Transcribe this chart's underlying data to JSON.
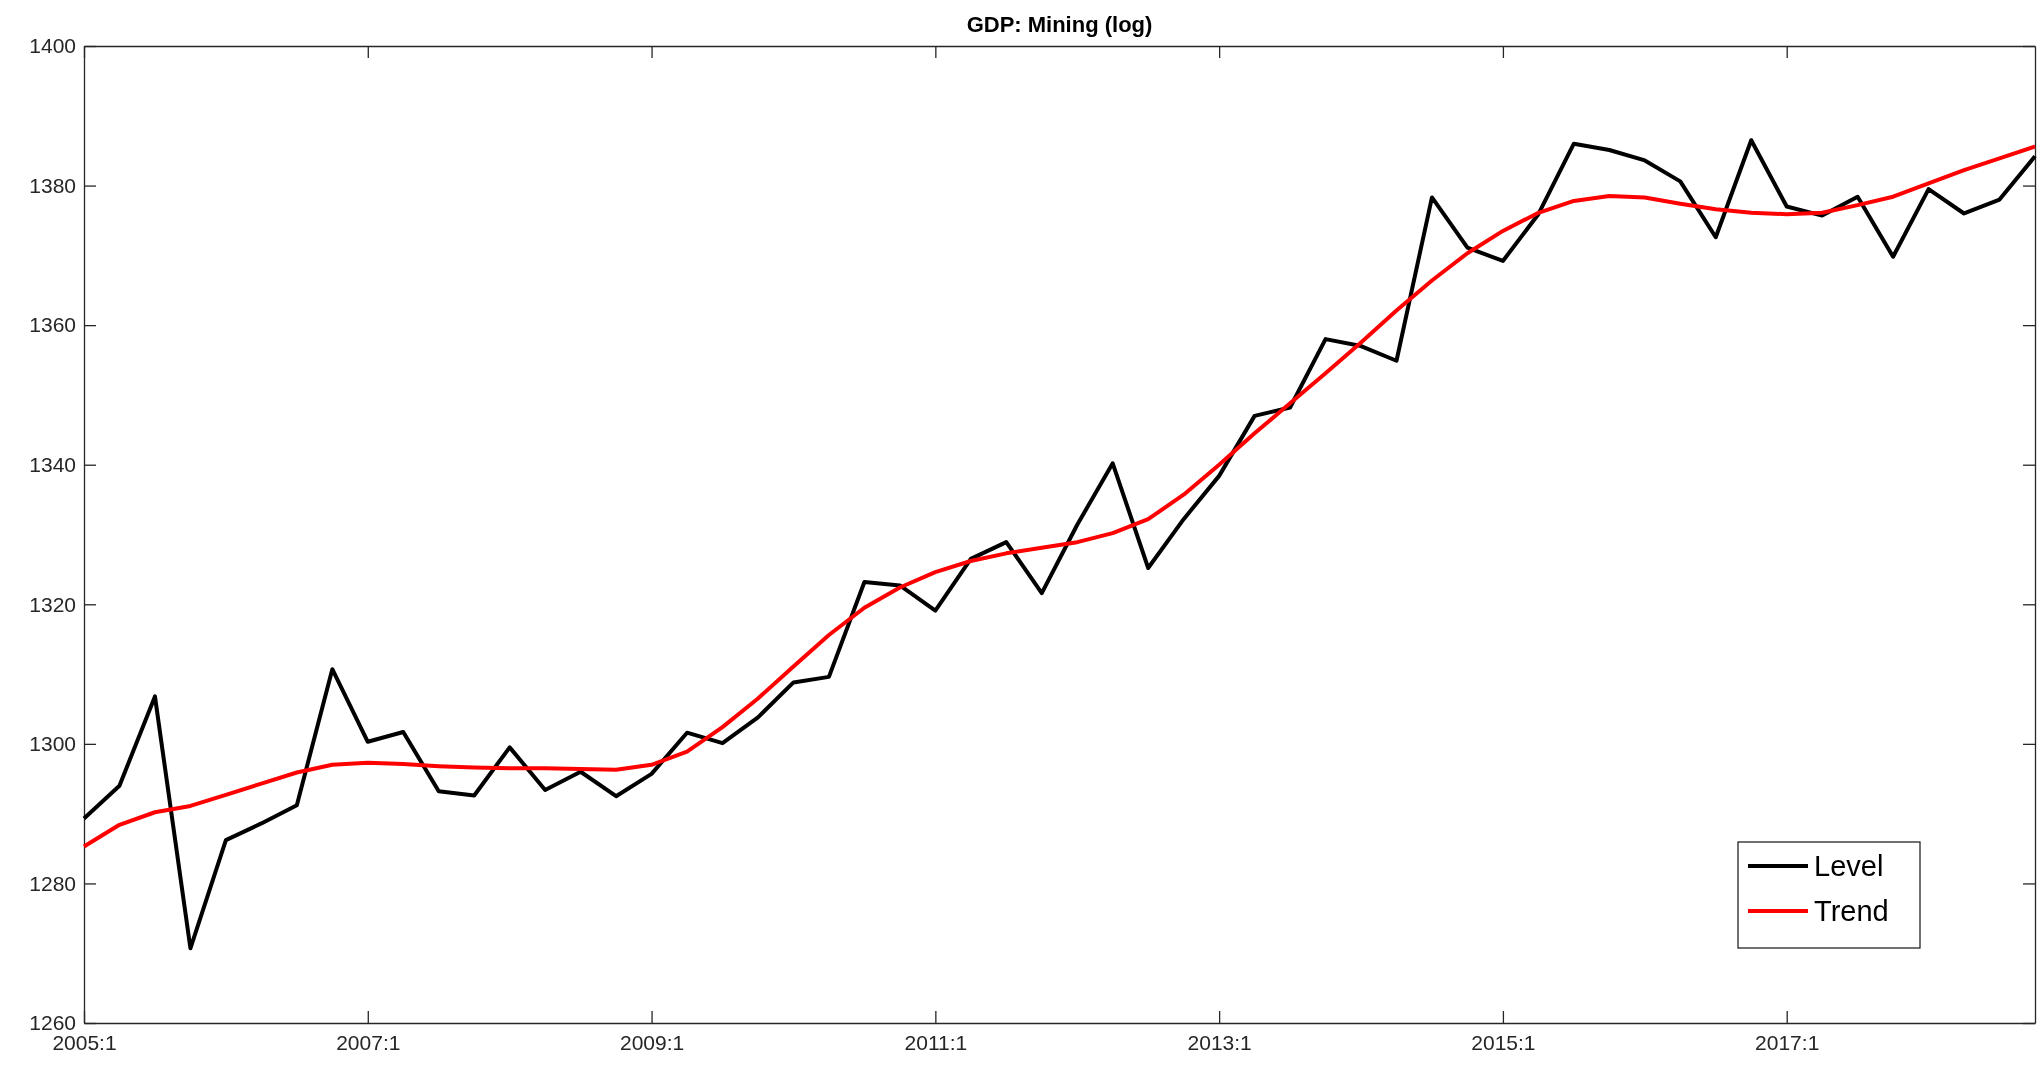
{
  "chart_data": {
    "type": "line",
    "title": "GDP: Mining (log)",
    "categories": [
      "2005:1",
      null,
      null,
      null,
      null,
      null,
      null,
      null,
      "2007:1",
      null,
      null,
      null,
      null,
      null,
      null,
      null,
      "2009:1",
      null,
      null,
      null,
      null,
      null,
      null,
      null,
      "2011:1",
      null,
      null,
      null,
      null,
      null,
      null,
      null,
      "2013:1",
      null,
      null,
      null,
      null,
      null,
      null,
      null,
      "2015:1",
      null,
      null,
      null,
      null,
      null,
      null,
      null,
      "2017:1",
      null,
      null,
      null,
      null,
      null,
      null,
      null
    ],
    "series": [
      {
        "name": "Level",
        "color": "#000000",
        "values": [
          1289.3,
          1294.0,
          1306.8,
          1270.7,
          1286.2,
          1288.6,
          1291.2,
          1310.7,
          1300.3,
          1301.7,
          1293.2,
          1292.6,
          1299.5,
          1293.4,
          1296.0,
          1292.5,
          1295.7,
          1301.6,
          1300.1,
          1303.8,
          1308.8,
          1309.6,
          1323.2,
          1322.7,
          1319.1,
          1326.5,
          1328.9,
          1321.6,
          1331.4,
          1340.2,
          1325.2,
          1332.2,
          1338.4,
          1347.0,
          1348.2,
          1358.0,
          1357.0,
          1354.9,
          1378.3,
          1371.1,
          1369.2,
          1375.9,
          1386.0,
          1385.1,
          1383.6,
          1380.6,
          1372.6,
          1386.5,
          1377.0,
          1375.7,
          1378.4,
          1369.8,
          1379.5,
          1376.0,
          1378.0,
          1384.2
        ]
      },
      {
        "name": "Trend",
        "color": "#ff0000",
        "values": [
          1285.3,
          1288.4,
          1290.2,
          1291.1,
          1292.7,
          1294.3,
          1295.9,
          1297.0,
          1297.3,
          1297.1,
          1296.8,
          1296.6,
          1296.5,
          1296.5,
          1296.4,
          1296.3,
          1297.0,
          1298.9,
          1302.4,
          1306.5,
          1311.1,
          1315.6,
          1319.5,
          1322.4,
          1324.6,
          1326.2,
          1327.3,
          1328.1,
          1328.9,
          1330.2,
          1332.2,
          1335.7,
          1340.0,
          1344.5,
          1348.8,
          1353.1,
          1357.5,
          1362.1,
          1366.4,
          1370.3,
          1373.5,
          1376.1,
          1377.8,
          1378.5,
          1378.3,
          1377.4,
          1376.6,
          1376.1,
          1375.9,
          1376.1,
          1377.2,
          1378.4,
          1380.3,
          1382.2,
          1383.9,
          1385.6
        ]
      }
    ],
    "ylim": [
      1260,
      1400
    ],
    "yticks": [
      1260,
      1280,
      1300,
      1320,
      1340,
      1360,
      1380,
      1400
    ],
    "legend": "bottom right",
    "line_style": "solid",
    "marker": "none"
  }
}
